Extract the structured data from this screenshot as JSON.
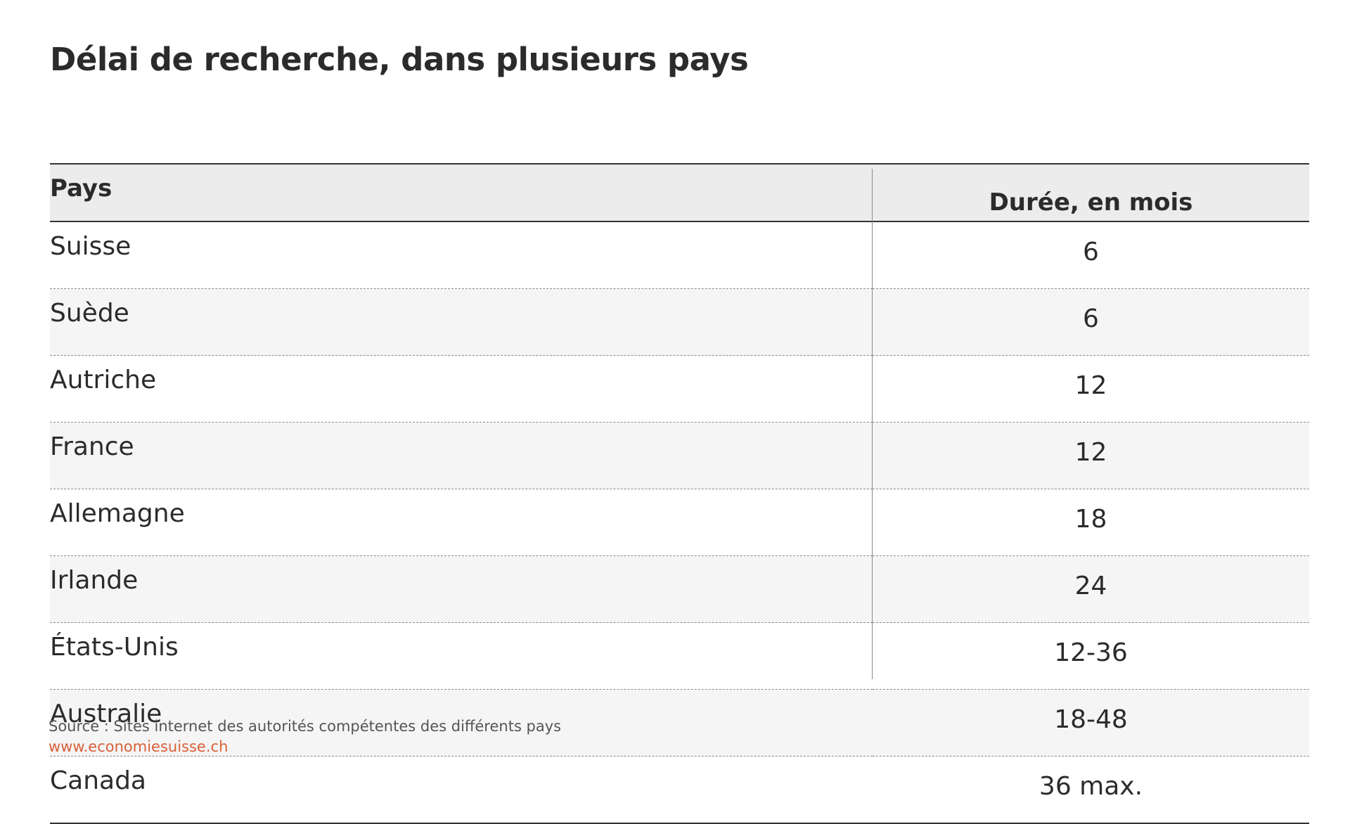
{
  "title": "Délai de recherche, dans plusieurs pays",
  "chart_data": {
    "type": "table",
    "title": "Délai de recherche, dans plusieurs pays",
    "columns": [
      "Pays",
      "Durée, en mois"
    ],
    "rows": [
      {
        "country": "Suisse",
        "duration": "6"
      },
      {
        "country": "Suède",
        "duration": "6"
      },
      {
        "country": "Autriche",
        "duration": "12"
      },
      {
        "country": "France",
        "duration": "12"
      },
      {
        "country": "Allemagne",
        "duration": "18"
      },
      {
        "country": "Irlande",
        "duration": "24"
      },
      {
        "country": "États-Unis",
        "duration": "12-36"
      },
      {
        "country": "Australie",
        "duration": "18-48"
      },
      {
        "country": "Canada",
        "duration": "36 max."
      }
    ]
  },
  "footer": {
    "source": "Source : Sites internet des autorités compétentes des différents pays",
    "website": "www.economiesuisse.ch"
  },
  "colors": {
    "text": "#2b2b2b",
    "header_bg": "#ececec",
    "alt_row_bg": "#f5f5f5",
    "website_link": "#d9603b"
  }
}
